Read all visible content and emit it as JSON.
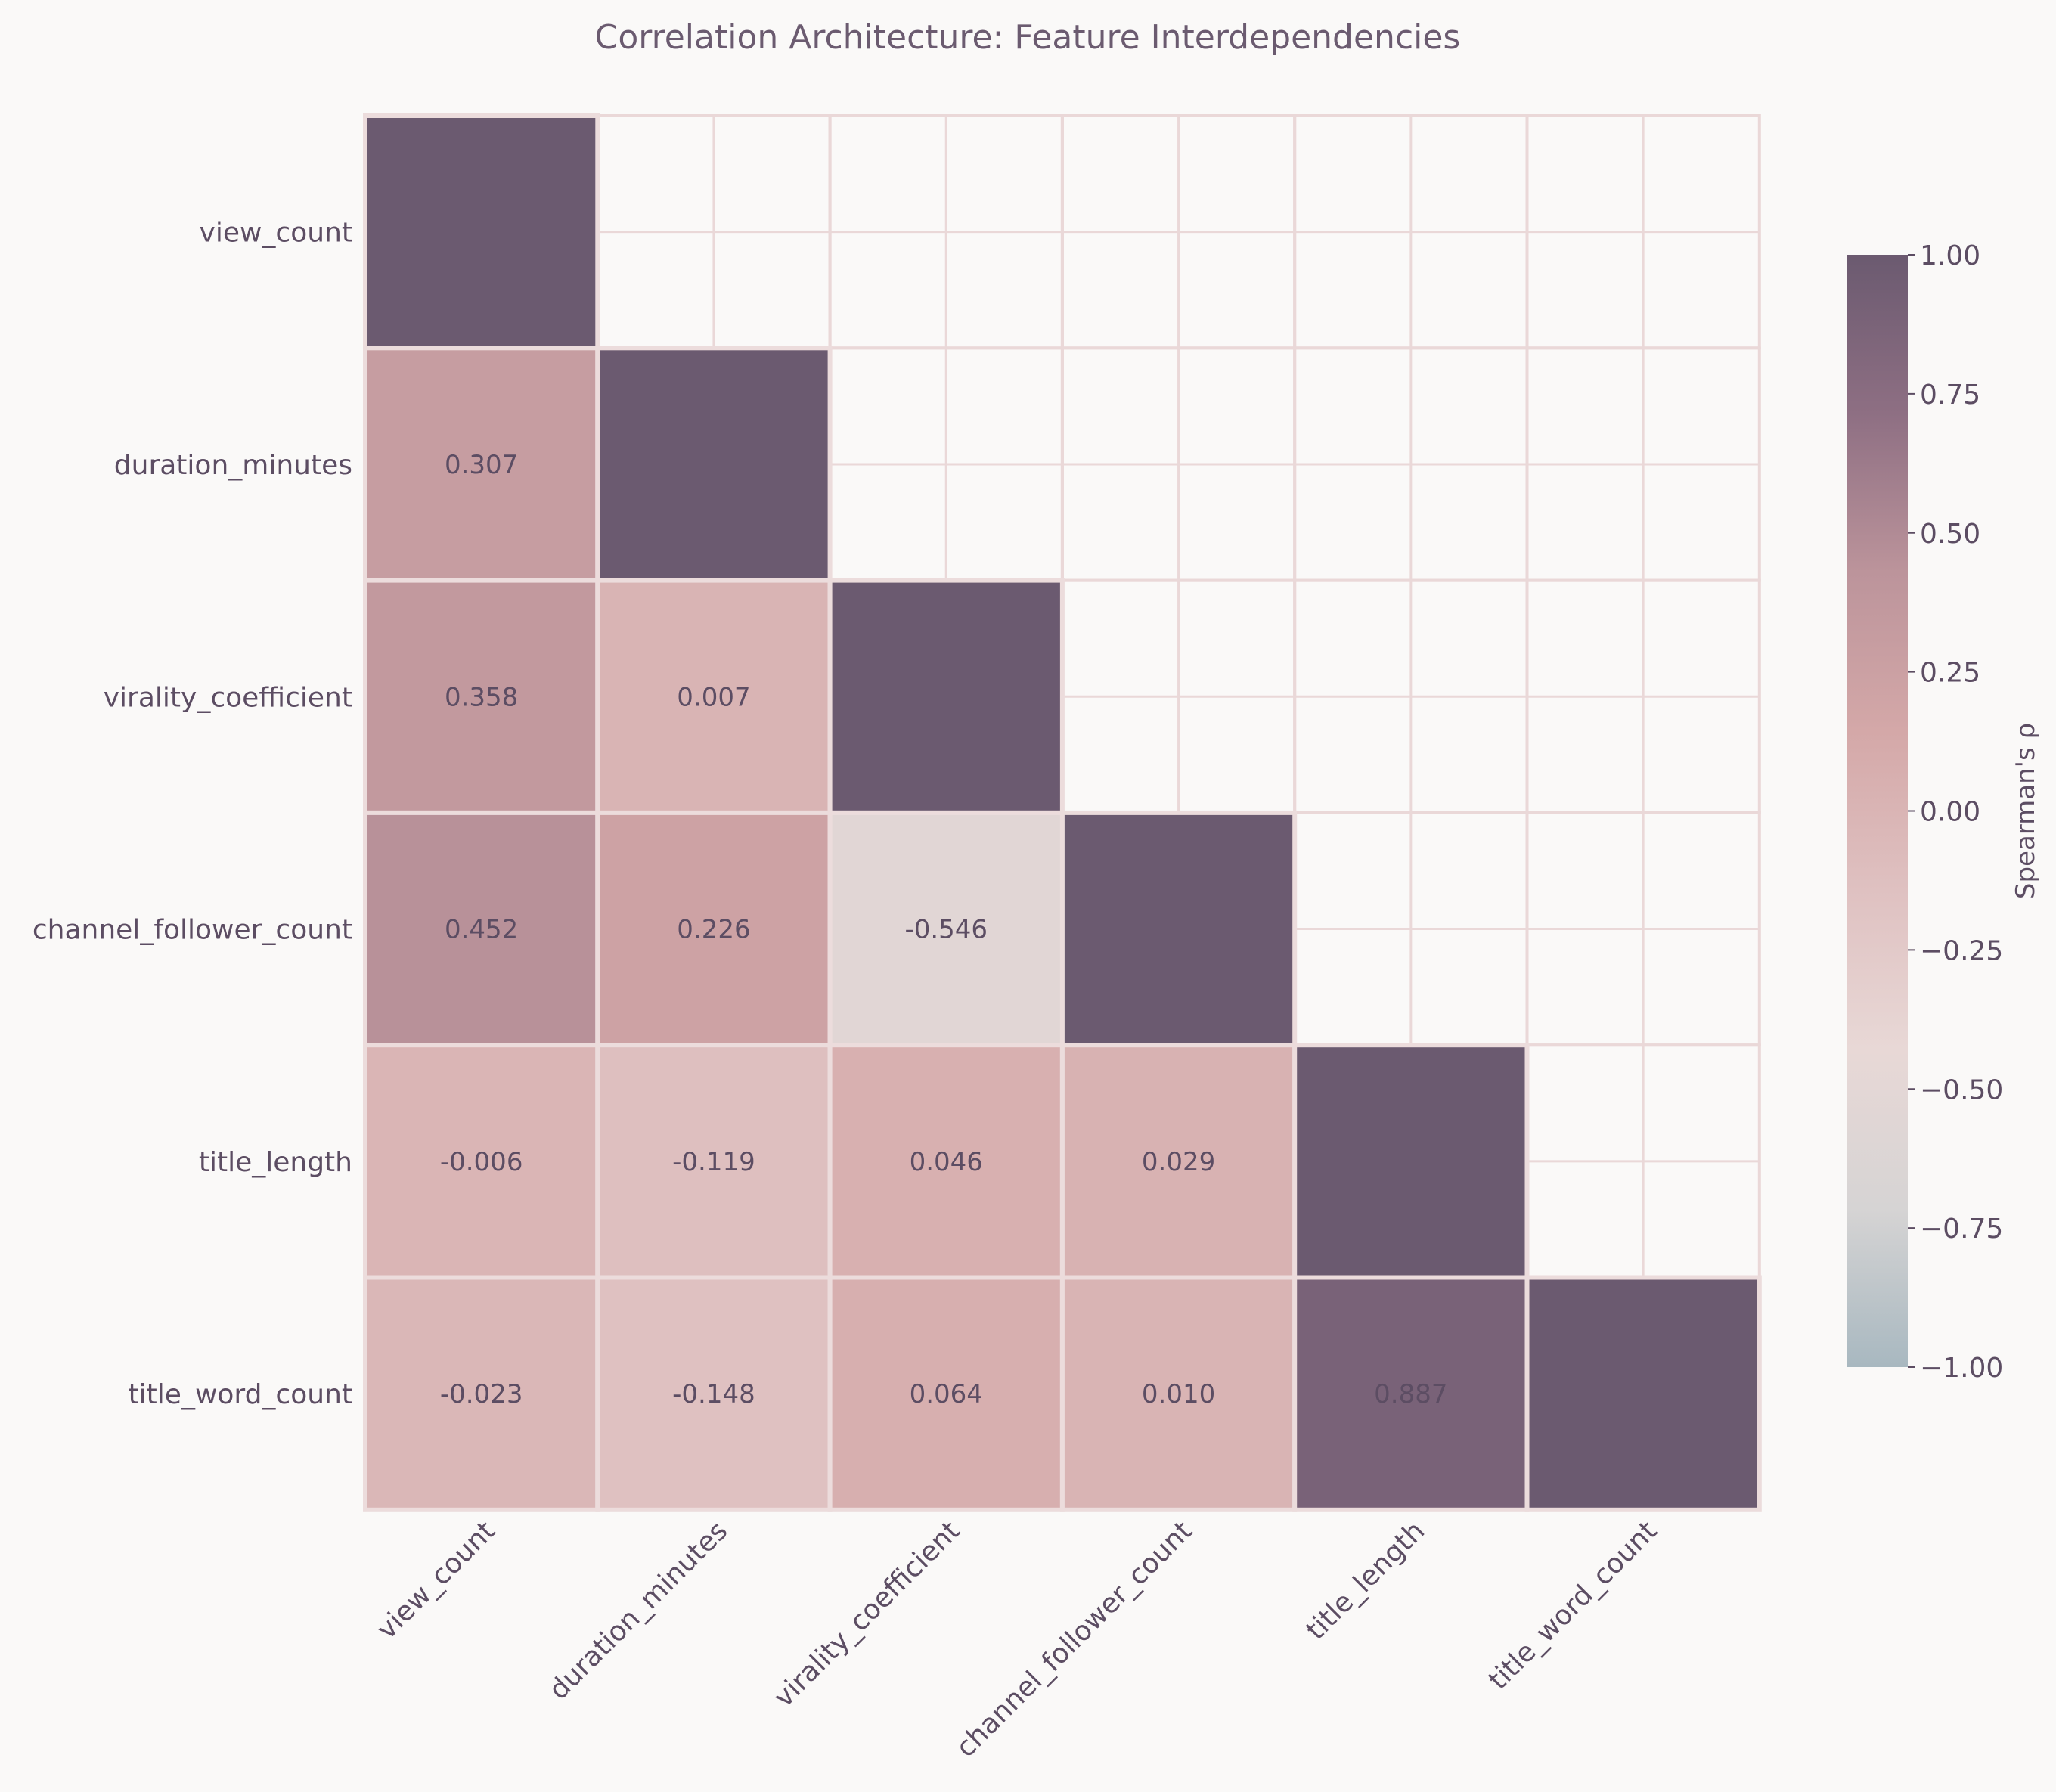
{
  "chart_data": {
    "type": "heatmap",
    "title": "Correlation Architecture: Feature Interdependencies",
    "variables": [
      "view_count",
      "duration_minutes",
      "virality_coefficient",
      "channel_follower_count",
      "title_length",
      "title_word_count"
    ],
    "matrix": [
      [
        1.0,
        null,
        null,
        null,
        null,
        null
      ],
      [
        0.307,
        1.0,
        null,
        null,
        null,
        null
      ],
      [
        0.358,
        0.007,
        1.0,
        null,
        null,
        null
      ],
      [
        0.452,
        0.226,
        -0.546,
        1.0,
        null,
        null
      ],
      [
        -0.006,
        -0.119,
        0.046,
        0.029,
        1.0,
        null
      ],
      [
        -0.023,
        -0.148,
        0.064,
        0.01,
        0.887,
        1.0
      ]
    ],
    "value_labels": [
      [
        "",
        "",
        "",
        "",
        "",
        ""
      ],
      [
        "0.307",
        "",
        "",
        "",
        "",
        ""
      ],
      [
        "0.358",
        "0.007",
        "",
        "",
        "",
        ""
      ],
      [
        "0.452",
        "0.226",
        "-0.546",
        "",
        "",
        ""
      ],
      [
        "-0.006",
        "-0.119",
        "0.046",
        "0.029",
        "",
        ""
      ],
      [
        "-0.023",
        "-0.148",
        "0.064",
        "0.010",
        "0.887",
        ""
      ]
    ],
    "mask": "upper-triangle",
    "colorbar": {
      "label": "Spearman's ρ",
      "range": [
        -1.0,
        1.0
      ],
      "tick_values": [
        1.0,
        0.75,
        0.5,
        0.25,
        0.0,
        -0.25,
        -0.5,
        -0.75,
        -1.0
      ],
      "tick_labels": [
        "1.00",
        "0.75",
        "0.50",
        "0.25",
        "0.00",
        "−0.25",
        "−0.50",
        "−0.75",
        "−1.00"
      ],
      "colors": [
        "#a8b8c0",
        "#d6d4d4",
        "#e8d8d6",
        "#dfc1c1",
        "#d4a8a8",
        "#bc949b",
        "#8e6f83",
        "#6b5a70"
      ]
    },
    "style": {
      "background": "#faf9f8",
      "grid_color": "#ead8d8",
      "text_color": "#5c4d63"
    }
  }
}
